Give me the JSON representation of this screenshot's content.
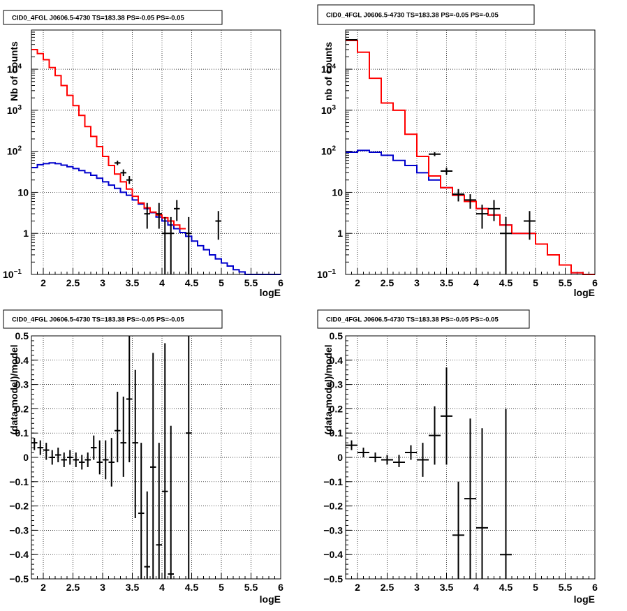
{
  "chart_data": [
    {
      "type": "step",
      "title": "CID0_4FGL J0606.5-4730 TS=183.38 PS=-0.05 PS=-0.05",
      "xlabel": "logE",
      "ylabel": "Nb of counts",
      "xlim": [
        1.8,
        6.0
      ],
      "ylim": [
        0.1,
        90000
      ],
      "yscale": "log",
      "grid": true,
      "xticks": [
        {
          "v": 2,
          "label": "2"
        },
        {
          "v": 2.5,
          "label": "2.5"
        },
        {
          "v": 3,
          "label": "3"
        },
        {
          "v": 3.5,
          "label": "3.5"
        },
        {
          "v": 4,
          "label": "4"
        },
        {
          "v": 4.5,
          "label": "4.5"
        },
        {
          "v": 5,
          "label": "5"
        },
        {
          "v": 5.5,
          "label": "5.5"
        },
        {
          "v": 6,
          "label": "6"
        }
      ],
      "yticks": [
        {
          "v": 0.1,
          "label": "10",
          "exp": "−1"
        },
        {
          "v": 1,
          "label": "1"
        },
        {
          "v": 10,
          "label": "10"
        },
        {
          "v": 100,
          "label": "10",
          "exp": "2"
        },
        {
          "v": 1000,
          "label": "10",
          "exp": "3"
        },
        {
          "v": 10000,
          "label": "10",
          "exp": "4"
        }
      ],
      "series": [
        {
          "color": "#0000cc",
          "edges": [
            1.8,
            1.9,
            2.0,
            2.1,
            2.2,
            2.3,
            2.4,
            2.5,
            2.6,
            2.7,
            2.8,
            2.9,
            3.0,
            3.1,
            3.2,
            3.3,
            3.4,
            3.5,
            3.6,
            3.7,
            3.8,
            3.9,
            4.0,
            4.1,
            4.2,
            4.3,
            4.4,
            4.5,
            4.6,
            4.7,
            4.8,
            4.9,
            5.0,
            5.1,
            5.2,
            5.3,
            5.4,
            5.5,
            6.0
          ],
          "values": [
            40,
            47,
            50,
            52,
            50,
            46,
            42,
            38,
            34,
            30,
            26,
            22,
            18,
            15,
            12.5,
            10,
            8.5,
            6.5,
            5.2,
            4.0,
            3.2,
            2.5,
            2.0,
            1.6,
            1.3,
            1.05,
            0.85,
            0.65,
            0.5,
            0.4,
            0.3,
            0.24,
            0.19,
            0.16,
            0.13,
            0.115,
            0.1,
            0.1
          ]
        },
        {
          "color": "#ff0000",
          "edges": [
            1.8,
            1.9,
            2.0,
            2.1,
            2.2,
            2.3,
            2.4,
            2.5,
            2.6,
            2.7,
            2.8,
            2.9,
            3.0,
            3.1,
            3.2,
            3.3,
            3.4,
            3.5,
            3.6,
            3.7,
            3.8,
            3.9,
            4.0,
            4.1,
            4.2,
            4.3,
            4.4
          ],
          "values": [
            30000,
            24000,
            17000,
            11000,
            7000,
            4000,
            2300,
            1300,
            750,
            400,
            230,
            130,
            75,
            45,
            28,
            18,
            12,
            8,
            5.5,
            4.2,
            3.3,
            2.8,
            2.4,
            2.0,
            1.6,
            1.3
          ]
        }
      ],
      "points": [
        {
          "x": 3.25,
          "y": 52,
          "xerr": 0.05,
          "ylo": 46,
          "yhi": 59
        },
        {
          "x": 3.35,
          "y": 30,
          "xerr": 0.05,
          "ylo": 25,
          "yhi": 36
        },
        {
          "x": 3.45,
          "y": 20,
          "xerr": 0.05,
          "ylo": 16,
          "yhi": 25
        },
        {
          "x": 3.75,
          "y": 3,
          "xerr": 0.05,
          "ylo": 1.3,
          "yhi": 5.5
        },
        {
          "x": 3.95,
          "y": 3,
          "xerr": 0.05,
          "ylo": 1.3,
          "yhi": 5.5
        },
        {
          "x": 4.05,
          "y": 1,
          "xerr": 0.05,
          "ylo": 0.1,
          "yhi": 2.5
        },
        {
          "x": 4.15,
          "y": 1,
          "xerr": 0.05,
          "ylo": 0.1,
          "yhi": 2.5
        },
        {
          "x": 4.25,
          "y": 4,
          "xerr": 0.05,
          "ylo": 2,
          "yhi": 6.5
        },
        {
          "x": 4.45,
          "y": 1,
          "xerr": 0.05,
          "ylo": 0.1,
          "yhi": 2.5
        },
        {
          "x": 4.95,
          "y": 2,
          "xerr": 0.05,
          "ylo": 0.7,
          "yhi": 3.5
        }
      ]
    },
    {
      "type": "step",
      "title": "CID0_4FGL J0606.5-4730 TS=183.38 PS=-0.05 PS=-0.05",
      "xlabel": "logE",
      "ylabel": "nb of counts",
      "xlim": [
        1.8,
        6.0
      ],
      "ylim": [
        0.1,
        90000
      ],
      "yscale": "log",
      "grid": true,
      "xticks": [
        {
          "v": 2,
          "label": "2"
        },
        {
          "v": 2.5,
          "label": "2.5"
        },
        {
          "v": 3,
          "label": "3"
        },
        {
          "v": 3.5,
          "label": "3.5"
        },
        {
          "v": 4,
          "label": "4"
        },
        {
          "v": 4.5,
          "label": "4.5"
        },
        {
          "v": 5,
          "label": "5"
        },
        {
          "v": 5.5,
          "label": "5.5"
        },
        {
          "v": 6,
          "label": "6"
        }
      ],
      "yticks": [
        {
          "v": 0.1,
          "label": "10",
          "exp": "−1"
        },
        {
          "v": 1,
          "label": "1"
        },
        {
          "v": 10,
          "label": "10"
        },
        {
          "v": 100,
          "label": "10",
          "exp": "2"
        },
        {
          "v": 1000,
          "label": "10",
          "exp": "3"
        },
        {
          "v": 10000,
          "label": "10",
          "exp": "4"
        }
      ],
      "series": [
        {
          "color": "#0000cc",
          "edges": [
            1.8,
            2.0,
            2.2,
            2.4,
            2.6,
            2.8,
            3.0,
            3.2,
            3.4,
            3.6,
            3.8,
            4.0,
            4.2,
            4.4,
            4.6,
            4.8,
            5.0,
            5.2,
            5.4,
            5.6,
            5.8,
            6.0
          ],
          "values": [
            95,
            105,
            95,
            80,
            60,
            45,
            30,
            20,
            13,
            8.5,
            6,
            4,
            2.8,
            1.6,
            1.0,
            1.0,
            0.55,
            0.3,
            0.17,
            0.11,
            0.1
          ]
        },
        {
          "color": "#ff0000",
          "edges": [
            1.8,
            2.0,
            2.2,
            2.4,
            2.6,
            2.8,
            3.0,
            3.2,
            3.4,
            3.6,
            3.8,
            4.0,
            4.2,
            4.4,
            4.6,
            4.8,
            5.0,
            5.2,
            5.4,
            5.6,
            5.8,
            6.0
          ],
          "values": [
            50000,
            26000,
            6000,
            1500,
            1000,
            260,
            75,
            25,
            13,
            8.5,
            6,
            4,
            2.8,
            1.6,
            1.0,
            1.0,
            0.55,
            0.3,
            0.17,
            0.11,
            0.1
          ]
        }
      ],
      "points": [
        {
          "x": 1.9,
          "y": 52000,
          "xerr": 0.1,
          "ylo": 50000,
          "yhi": 54000
        },
        {
          "x": 3.3,
          "y": 85,
          "xerr": 0.1,
          "ylo": 76,
          "yhi": 95
        },
        {
          "x": 3.5,
          "y": 33,
          "xerr": 0.1,
          "ylo": 27,
          "yhi": 40
        },
        {
          "x": 3.7,
          "y": 9,
          "xerr": 0.1,
          "ylo": 6,
          "yhi": 12
        },
        {
          "x": 3.9,
          "y": 6.5,
          "xerr": 0.1,
          "ylo": 4,
          "yhi": 9
        },
        {
          "x": 4.1,
          "y": 3,
          "xerr": 0.1,
          "ylo": 1.3,
          "yhi": 5
        },
        {
          "x": 4.3,
          "y": 4,
          "xerr": 0.1,
          "ylo": 2,
          "yhi": 6.5
        },
        {
          "x": 4.5,
          "y": 1,
          "xerr": 0.1,
          "ylo": 0.1,
          "yhi": 2.5
        },
        {
          "x": 4.9,
          "y": 2,
          "xerr": 0.1,
          "ylo": 0.7,
          "yhi": 3.5
        }
      ]
    },
    {
      "type": "scatter",
      "title": "CID0_4FGL J0606.5-4730 TS=183.38 PS=-0.05 PS=-0.05",
      "xlabel": "logE",
      "ylabel": "(data-model)/model",
      "xlim": [
        1.8,
        6.0
      ],
      "ylim": [
        -0.5,
        0.5
      ],
      "yscale": "linear",
      "grid": true,
      "xticks": [
        {
          "v": 2,
          "label": "2"
        },
        {
          "v": 2.5,
          "label": "2.5"
        },
        {
          "v": 3,
          "label": "3"
        },
        {
          "v": 3.5,
          "label": "3.5"
        },
        {
          "v": 4,
          "label": "4"
        },
        {
          "v": 4.5,
          "label": "4.5"
        },
        {
          "v": 5,
          "label": "5"
        },
        {
          "v": 5.5,
          "label": "5.5"
        },
        {
          "v": 6,
          "label": "6"
        }
      ],
      "yticks": [
        {
          "v": -0.5,
          "label": "−0.5"
        },
        {
          "v": -0.4,
          "label": "−0.4"
        },
        {
          "v": -0.3,
          "label": "−0.3"
        },
        {
          "v": -0.2,
          "label": "−0.2"
        },
        {
          "v": -0.1,
          "label": "−0.1"
        },
        {
          "v": 0,
          "label": "0"
        },
        {
          "v": 0.1,
          "label": "0.1"
        },
        {
          "v": 0.2,
          "label": "0.2"
        },
        {
          "v": 0.3,
          "label": "0.3"
        },
        {
          "v": 0.4,
          "label": "0.4"
        },
        {
          "v": 0.5,
          "label": "0.5"
        }
      ],
      "series": [],
      "points": [
        {
          "x": 1.85,
          "y": 0.06,
          "xerr": 0.05,
          "ylo": 0.03,
          "yhi": 0.08
        },
        {
          "x": 1.95,
          "y": 0.04,
          "xerr": 0.05,
          "ylo": 0.01,
          "yhi": 0.07
        },
        {
          "x": 2.05,
          "y": 0.03,
          "xerr": 0.05,
          "ylo": -0.01,
          "yhi": 0.06
        },
        {
          "x": 2.15,
          "y": 0.0,
          "xerr": 0.05,
          "ylo": -0.03,
          "yhi": 0.03
        },
        {
          "x": 2.25,
          "y": 0.01,
          "xerr": 0.05,
          "ylo": -0.02,
          "yhi": 0.04
        },
        {
          "x": 2.35,
          "y": -0.01,
          "xerr": 0.05,
          "ylo": -0.04,
          "yhi": 0.02
        },
        {
          "x": 2.45,
          "y": 0.0,
          "xerr": 0.05,
          "ylo": -0.03,
          "yhi": 0.03
        },
        {
          "x": 2.55,
          "y": -0.01,
          "xerr": 0.05,
          "ylo": -0.04,
          "yhi": 0.02
        },
        {
          "x": 2.65,
          "y": -0.02,
          "xerr": 0.05,
          "ylo": -0.05,
          "yhi": 0.01
        },
        {
          "x": 2.75,
          "y": -0.01,
          "xerr": 0.05,
          "ylo": -0.04,
          "yhi": 0.02
        },
        {
          "x": 2.85,
          "y": 0.04,
          "xerr": 0.05,
          "ylo": -0.01,
          "yhi": 0.09
        },
        {
          "x": 2.95,
          "y": -0.02,
          "xerr": 0.05,
          "ylo": -0.07,
          "yhi": 0.07
        },
        {
          "x": 3.05,
          "y": -0.01,
          "xerr": 0.05,
          "ylo": -0.09,
          "yhi": 0.07
        },
        {
          "x": 3.15,
          "y": -0.02,
          "xerr": 0.05,
          "ylo": -0.12,
          "yhi": 0.08
        },
        {
          "x": 3.25,
          "y": 0.11,
          "xerr": 0.05,
          "ylo": -0.02,
          "yhi": 0.27
        },
        {
          "x": 3.35,
          "y": 0.06,
          "xerr": 0.05,
          "ylo": -0.08,
          "yhi": 0.25
        },
        {
          "x": 3.45,
          "y": 0.24,
          "xerr": 0.05,
          "ylo": -0.02,
          "yhi": 0.5
        },
        {
          "x": 3.55,
          "y": 0.06,
          "xerr": 0.05,
          "ylo": -0.25,
          "yhi": 0.36
        },
        {
          "x": 3.65,
          "y": -0.23,
          "xerr": 0.05,
          "ylo": -0.5,
          "yhi": 0.06
        },
        {
          "x": 3.75,
          "y": -0.45,
          "xerr": 0.05,
          "ylo": -0.5,
          "yhi": -0.14
        },
        {
          "x": 3.85,
          "y": -0.04,
          "xerr": 0.05,
          "ylo": -0.5,
          "yhi": 0.43
        },
        {
          "x": 3.95,
          "y": -0.36,
          "xerr": 0.05,
          "ylo": -0.5,
          "yhi": 0.06
        },
        {
          "x": 4.05,
          "y": -0.14,
          "xerr": 0.05,
          "ylo": -0.5,
          "yhi": 0.47
        },
        {
          "x": 4.15,
          "y": -0.48,
          "xerr": 0.05,
          "ylo": -0.5,
          "yhi": 0.13
        },
        {
          "x": 4.45,
          "y": 0.1,
          "xerr": 0.05,
          "ylo": -0.5,
          "yhi": 0.5
        }
      ]
    },
    {
      "type": "scatter",
      "title": "CID0_4FGL J0606.5-4730 TS=183.38 PS=-0.05 PS=-0.05",
      "xlabel": "logE",
      "ylabel": "(data-model)/model",
      "xlim": [
        1.8,
        6.0
      ],
      "ylim": [
        -0.5,
        0.5
      ],
      "yscale": "linear",
      "grid": true,
      "xticks": [
        {
          "v": 2,
          "label": "2"
        },
        {
          "v": 2.5,
          "label": "2.5"
        },
        {
          "v": 3,
          "label": "3"
        },
        {
          "v": 3.5,
          "label": "3.5"
        },
        {
          "v": 4,
          "label": "4"
        },
        {
          "v": 4.5,
          "label": "4.5"
        },
        {
          "v": 5,
          "label": "5"
        },
        {
          "v": 5.5,
          "label": "5.5"
        },
        {
          "v": 6,
          "label": "6"
        }
      ],
      "yticks": [
        {
          "v": -0.5,
          "label": "−0.5"
        },
        {
          "v": -0.4,
          "label": "−0.4"
        },
        {
          "v": -0.3,
          "label": "−0.3"
        },
        {
          "v": -0.2,
          "label": "−0.2"
        },
        {
          "v": -0.1,
          "label": "−0.1"
        },
        {
          "v": 0,
          "label": "0"
        },
        {
          "v": 0.1,
          "label": "0.1"
        },
        {
          "v": 0.2,
          "label": "0.2"
        },
        {
          "v": 0.3,
          "label": "0.3"
        },
        {
          "v": 0.4,
          "label": "0.4"
        },
        {
          "v": 0.5,
          "label": "0.5"
        }
      ],
      "series": [],
      "points": [
        {
          "x": 1.9,
          "y": 0.05,
          "xerr": 0.1,
          "ylo": 0.03,
          "yhi": 0.07
        },
        {
          "x": 2.1,
          "y": 0.02,
          "xerr": 0.1,
          "ylo": 0.0,
          "yhi": 0.04
        },
        {
          "x": 2.3,
          "y": 0.0,
          "xerr": 0.1,
          "ylo": -0.02,
          "yhi": 0.02
        },
        {
          "x": 2.5,
          "y": -0.01,
          "xerr": 0.1,
          "ylo": -0.03,
          "yhi": 0.01
        },
        {
          "x": 2.7,
          "y": -0.02,
          "xerr": 0.1,
          "ylo": -0.04,
          "yhi": 0.01
        },
        {
          "x": 2.9,
          "y": 0.02,
          "xerr": 0.1,
          "ylo": -0.01,
          "yhi": 0.05
        },
        {
          "x": 3.1,
          "y": -0.01,
          "xerr": 0.1,
          "ylo": -0.08,
          "yhi": 0.06
        },
        {
          "x": 3.3,
          "y": 0.09,
          "xerr": 0.1,
          "ylo": -0.03,
          "yhi": 0.21
        },
        {
          "x": 3.5,
          "y": 0.17,
          "xerr": 0.1,
          "ylo": -0.03,
          "yhi": 0.37
        },
        {
          "x": 3.7,
          "y": -0.32,
          "xerr": 0.1,
          "ylo": -0.5,
          "yhi": -0.1
        },
        {
          "x": 3.9,
          "y": -0.17,
          "xerr": 0.1,
          "ylo": -0.5,
          "yhi": 0.16
        },
        {
          "x": 4.1,
          "y": -0.29,
          "xerr": 0.1,
          "ylo": -0.5,
          "yhi": 0.12
        },
        {
          "x": 4.5,
          "y": -0.4,
          "xerr": 0.1,
          "ylo": -0.5,
          "yhi": 0.2
        }
      ]
    }
  ]
}
